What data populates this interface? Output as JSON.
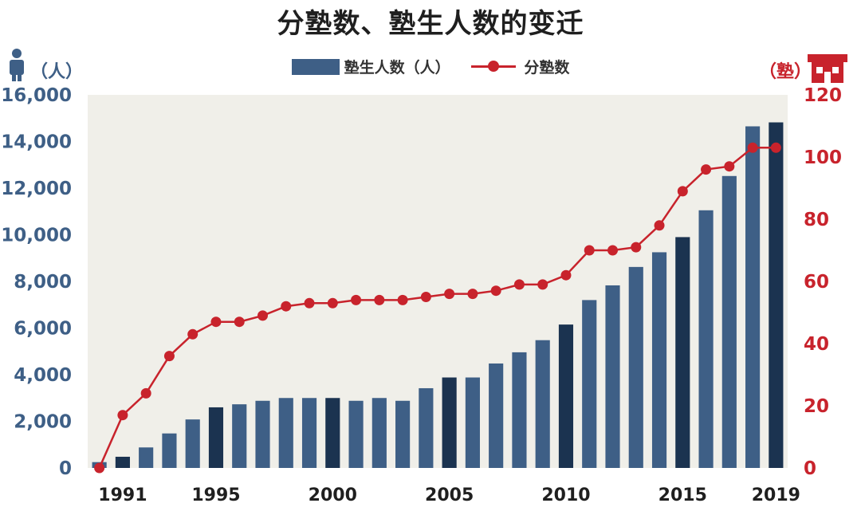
{
  "chart_data": {
    "type": "bar",
    "title": "分塾数、塾生人数的变迁",
    "x": [
      1990,
      1991,
      1992,
      1993,
      1994,
      1995,
      1996,
      1997,
      1998,
      1999,
      2000,
      2001,
      2002,
      2003,
      2004,
      2005,
      2006,
      2007,
      2008,
      2009,
      2010,
      2011,
      2012,
      2013,
      2014,
      2015,
      2016,
      2017,
      2018,
      2019
    ],
    "x_tick_labels": [
      "1991",
      "1995",
      "2000",
      "2005",
      "2010",
      "2015",
      "2019"
    ],
    "x_tick_values": [
      1991,
      1995,
      2000,
      2005,
      2010,
      2015,
      2019
    ],
    "highlighted_x": [
      1991,
      1995,
      2000,
      2005,
      2010,
      2015,
      2019
    ],
    "series": [
      {
        "name": "塾生人数（人）",
        "type": "bar",
        "axis": "left",
        "color": "#3e5f86",
        "highlight_color": "#1b3350",
        "values": [
          250,
          480,
          880,
          1480,
          2080,
          2600,
          2730,
          2880,
          3000,
          3000,
          3000,
          2880,
          3000,
          2880,
          3420,
          3880,
          3880,
          4480,
          4960,
          5480,
          6150,
          7200,
          7830,
          8620,
          9250,
          9900,
          11050,
          12520,
          14650,
          14820
        ]
      },
      {
        "name": "分塾数",
        "type": "line",
        "axis": "right",
        "color": "#c8232c",
        "values": [
          0,
          17,
          24,
          36,
          43,
          47,
          47,
          49,
          52,
          53,
          53,
          54,
          54,
          54,
          55,
          56,
          56,
          57,
          59,
          59,
          62,
          70,
          70,
          71,
          78,
          89,
          96,
          97,
          103,
          103
        ]
      }
    ],
    "y_left": {
      "label": "（人）",
      "ylim": [
        0,
        16000
      ],
      "ticks": [
        0,
        2000,
        4000,
        6000,
        8000,
        10000,
        12000,
        14000,
        16000
      ],
      "tick_labels": [
        "0",
        "2,000",
        "4,000",
        "6,000",
        "8,000",
        "10,000",
        "12,000",
        "14,000",
        "16,000"
      ],
      "color": "#3e5f86"
    },
    "y_right": {
      "label": "（塾）",
      "ylim": [
        0,
        120
      ],
      "ticks": [
        0,
        20,
        40,
        60,
        80,
        100,
        120
      ],
      "tick_labels": [
        "0",
        "20",
        "40",
        "60",
        "80",
        "100",
        "120"
      ],
      "color": "#c8232c"
    },
    "grid": false,
    "legend": "top-center",
    "plot_background": "#f0efe9"
  },
  "icons": {
    "left": "person-icon",
    "right": "school-house-icon"
  }
}
